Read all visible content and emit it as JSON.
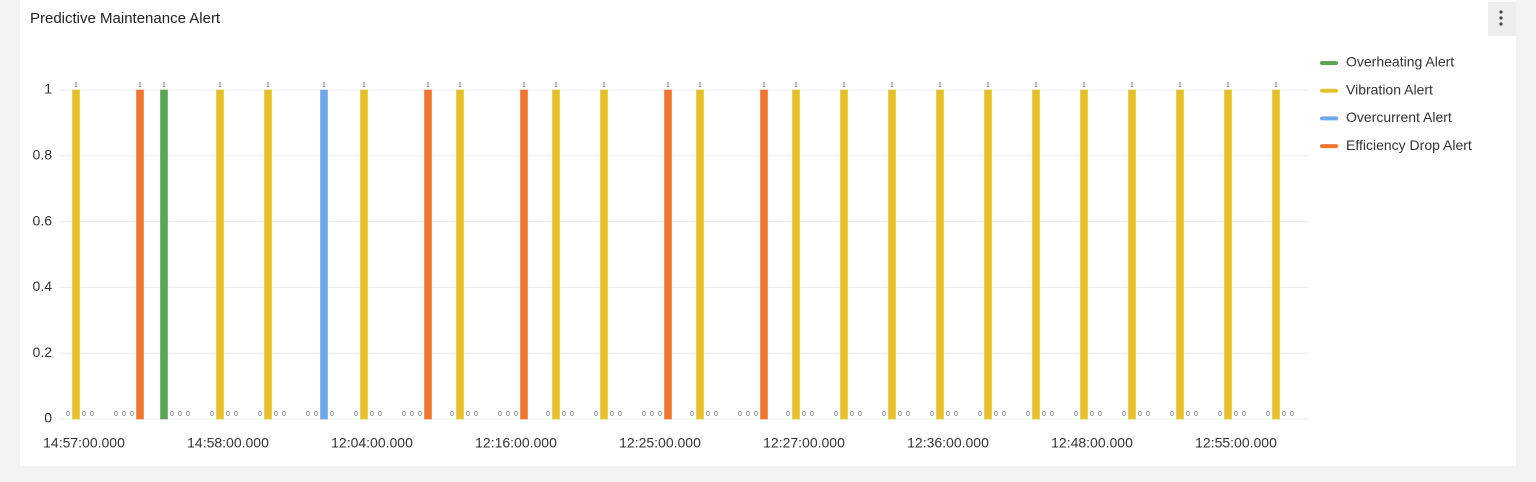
{
  "chart_data": {
    "type": "bar",
    "title": "Predictive Maintenance Alert",
    "categories": [
      "14:57:00.000",
      null,
      null,
      "14:58:00.000",
      null,
      null,
      "12:04:00.000",
      null,
      null,
      "12:16:00.000",
      null,
      null,
      "12:25:00.000",
      null,
      null,
      "12:27:00.000",
      null,
      null,
      "12:36:00.000",
      null,
      null,
      "12:48:00.000",
      null,
      null,
      "12:55:00.000",
      null
    ],
    "series": [
      {
        "name": "Overheating Alert",
        "color": "#5aa454",
        "values": [
          0,
          0,
          1,
          0,
          0,
          0,
          0,
          0,
          0,
          0,
          0,
          0,
          0,
          0,
          0,
          0,
          0,
          0,
          0,
          0,
          0,
          0,
          0,
          0,
          0,
          0
        ]
      },
      {
        "name": "Vibration Alert",
        "color": "#e5c12e",
        "values": [
          1,
          0,
          0,
          1,
          1,
          0,
          1,
          0,
          1,
          0,
          1,
          1,
          0,
          1,
          0,
          1,
          1,
          1,
          1,
          1,
          1,
          1,
          1,
          1,
          1,
          1
        ]
      },
      {
        "name": "Overcurrent Alert",
        "color": "#6ea7ec",
        "values": [
          0,
          0,
          0,
          0,
          0,
          1,
          0,
          0,
          0,
          0,
          0,
          0,
          0,
          0,
          0,
          0,
          0,
          0,
          0,
          0,
          0,
          0,
          0,
          0,
          0,
          0
        ]
      },
      {
        "name": "Efficiency Drop Alert",
        "color": "#ef7630",
        "values": [
          0,
          1,
          0,
          0,
          0,
          0,
          0,
          1,
          0,
          1,
          0,
          0,
          1,
          0,
          1,
          0,
          0,
          0,
          0,
          0,
          0,
          0,
          0,
          0,
          0,
          0
        ]
      }
    ],
    "ylim": [
      0,
      1
    ],
    "yticks": [
      0,
      0.2,
      0.4,
      0.6,
      0.8,
      1
    ],
    "grid": true,
    "legend": "right"
  }
}
